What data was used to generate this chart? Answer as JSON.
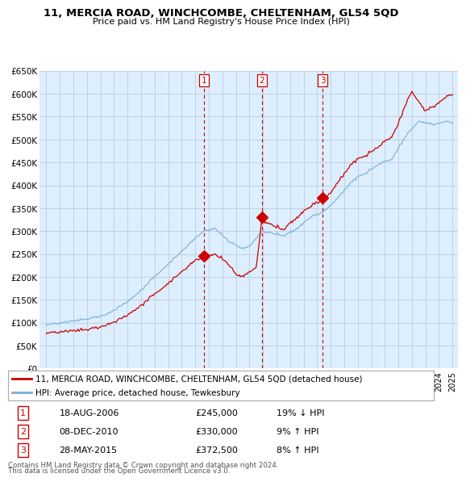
{
  "title": "11, MERCIA ROAD, WINCHCOMBE, CHELTENHAM, GL54 5QD",
  "subtitle": "Price paid vs. HM Land Registry's House Price Index (HPI)",
  "legend_property": "11, MERCIA ROAD, WINCHCOMBE, CHELTENHAM, GL54 5QD (detached house)",
  "legend_hpi": "HPI: Average price, detached house, Tewkesbury",
  "footnote1": "Contains HM Land Registry data © Crown copyright and database right 2024.",
  "footnote2": "This data is licensed under the Open Government Licence v3.0.",
  "transactions": [
    {
      "num": 1,
      "date": "18-AUG-2006",
      "price": "£245,000",
      "hpi": "19% ↓ HPI",
      "year": 2006.63
    },
    {
      "num": 2,
      "date": "08-DEC-2010",
      "price": "£330,000",
      "hpi": "9% ↑ HPI",
      "year": 2010.93
    },
    {
      "num": 3,
      "date": "28-MAY-2015",
      "price": "£372,500",
      "hpi": "8% ↑ HPI",
      "year": 2015.41
    }
  ],
  "transaction_years": [
    2006.63,
    2010.93,
    2015.41
  ],
  "transaction_values": [
    245000,
    330000,
    372500
  ],
  "ylim": [
    0,
    650000
  ],
  "yticks": [
    0,
    50000,
    100000,
    150000,
    200000,
    250000,
    300000,
    350000,
    400000,
    450000,
    500000,
    550000,
    600000,
    650000
  ],
  "xlim_start": 1995.0,
  "xlim_end": 2025.0,
  "color_property": "#cc0000",
  "color_hpi": "#7bafd4",
  "color_grid": "#bbccdd",
  "color_bg": "#ddeeff",
  "color_vline": "#cc0000"
}
